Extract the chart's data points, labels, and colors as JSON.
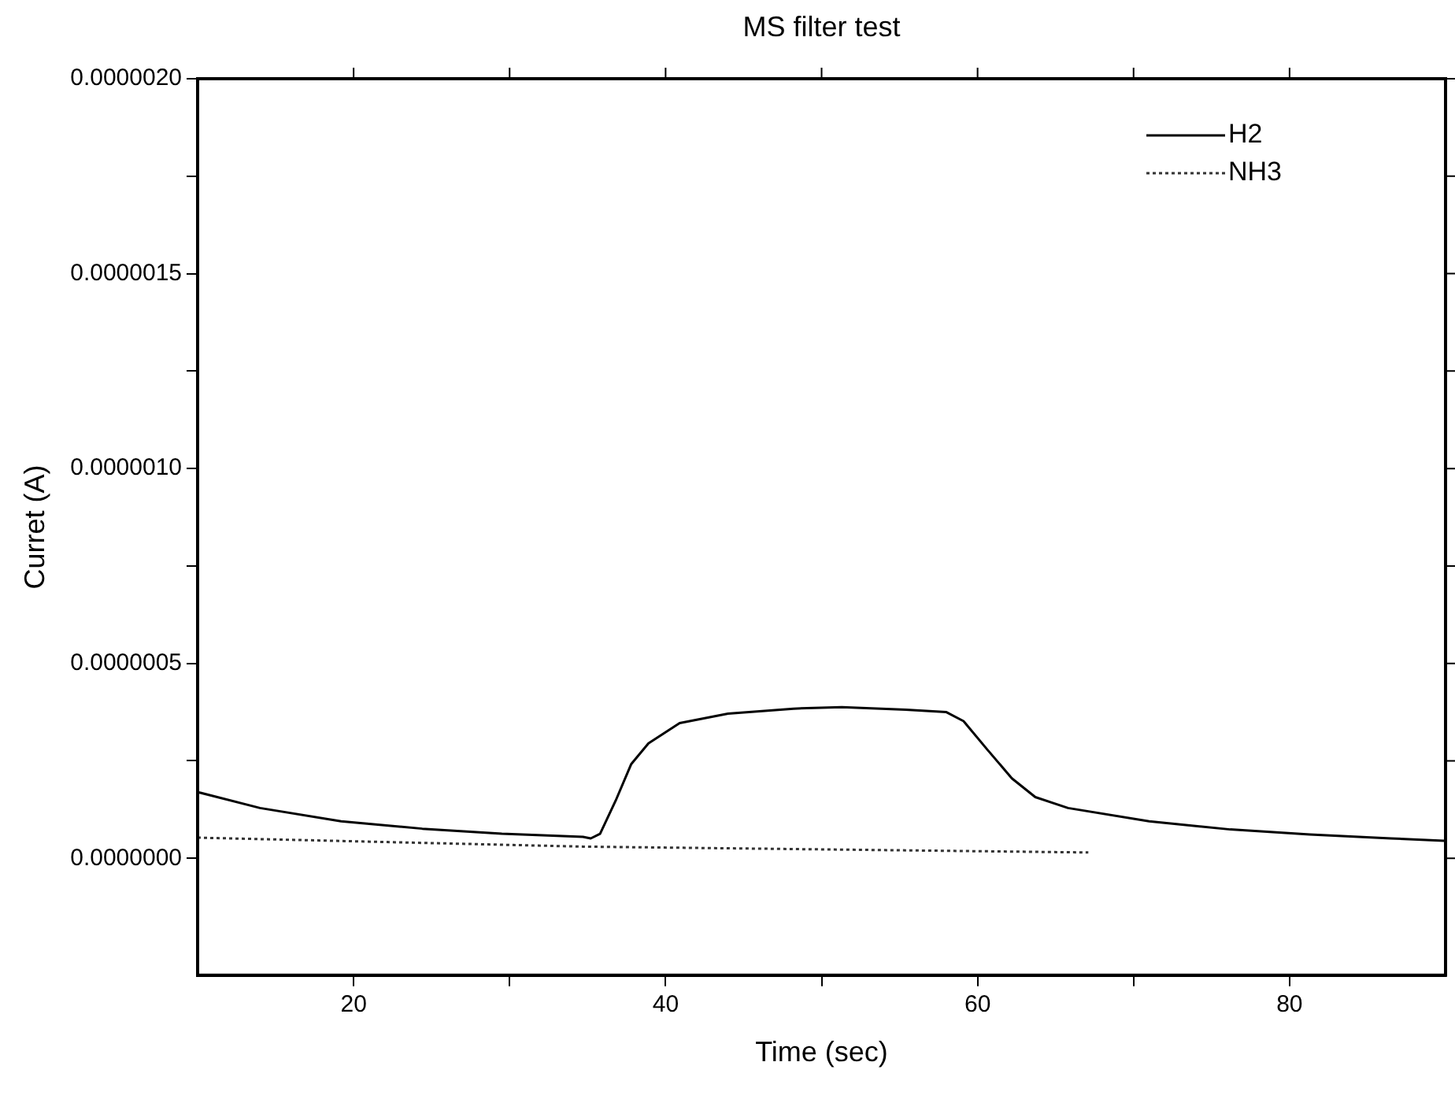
{
  "chart_data": {
    "type": "line",
    "title": "MS filter test",
    "xlabel": "Time (sec)",
    "ylabel": "Curret (A)",
    "xlim": [
      10,
      90
    ],
    "xticks": [
      20,
      {
        "value": 30,
        "label": null
      },
      40,
      {
        "value": 50,
        "label": null
      },
      60,
      {
        "value": 70,
        "label": null
      },
      80
    ],
    "ylim": [
      -3e-07,
      2e-06
    ],
    "yticks": [
      {
        "value": 0,
        "label": "0.0000000"
      },
      {
        "value": 2.5e-07,
        "label": null
      },
      {
        "value": 5e-07,
        "label": "0.0000005"
      },
      {
        "value": 7.5e-07,
        "label": null
      },
      {
        "value": 1e-06,
        "label": "0.0000010"
      },
      {
        "value": 1.25e-06,
        "label": null
      },
      {
        "value": 1.5e-06,
        "label": "0.0000015"
      },
      {
        "value": 1.75e-06,
        "label": null
      },
      {
        "value": 2e-06,
        "label": "0.0000020"
      }
    ],
    "grid": false,
    "legend": "top right",
    "marker": "none",
    "series": [
      {
        "name": "H2",
        "color": "#000000",
        "line_style": "solid",
        "x": [
          10,
          14,
          19.2,
          24.4,
          29.5,
          34.7,
          35.2,
          35.8,
          36.8,
          37.8,
          38.9,
          40.9,
          44,
          48.2,
          51.3,
          55.4,
          58,
          59.1,
          60.6,
          62.2,
          63.7,
          65.8,
          71,
          76.2,
          81.3,
          86.5,
          89.9
        ],
        "values": [
          1.7e-07,
          1.29e-07,
          9.5e-08,
          7.6e-08,
          6.3e-08,
          5.5e-08,
          5.1e-08,
          6.3e-08,
          1.48e-07,
          2.42e-07,
          2.95e-07,
          3.47e-07,
          3.71e-07,
          3.84e-07,
          3.88e-07,
          3.81e-07,
          3.75e-07,
          3.52e-07,
          2.8e-07,
          2.05e-07,
          1.57e-07,
          1.29e-07,
          9.5e-08,
          7.4e-08,
          6.1e-08,
          5.1e-08,
          4.5e-08
        ]
      },
      {
        "name": "NH3",
        "color": "#333333",
        "line_style": "dotted",
        "x": [
          10,
          34.7,
          67.1
        ],
        "values": [
          5.3e-08,
          3e-08,
          1.5e-08
        ]
      }
    ]
  }
}
